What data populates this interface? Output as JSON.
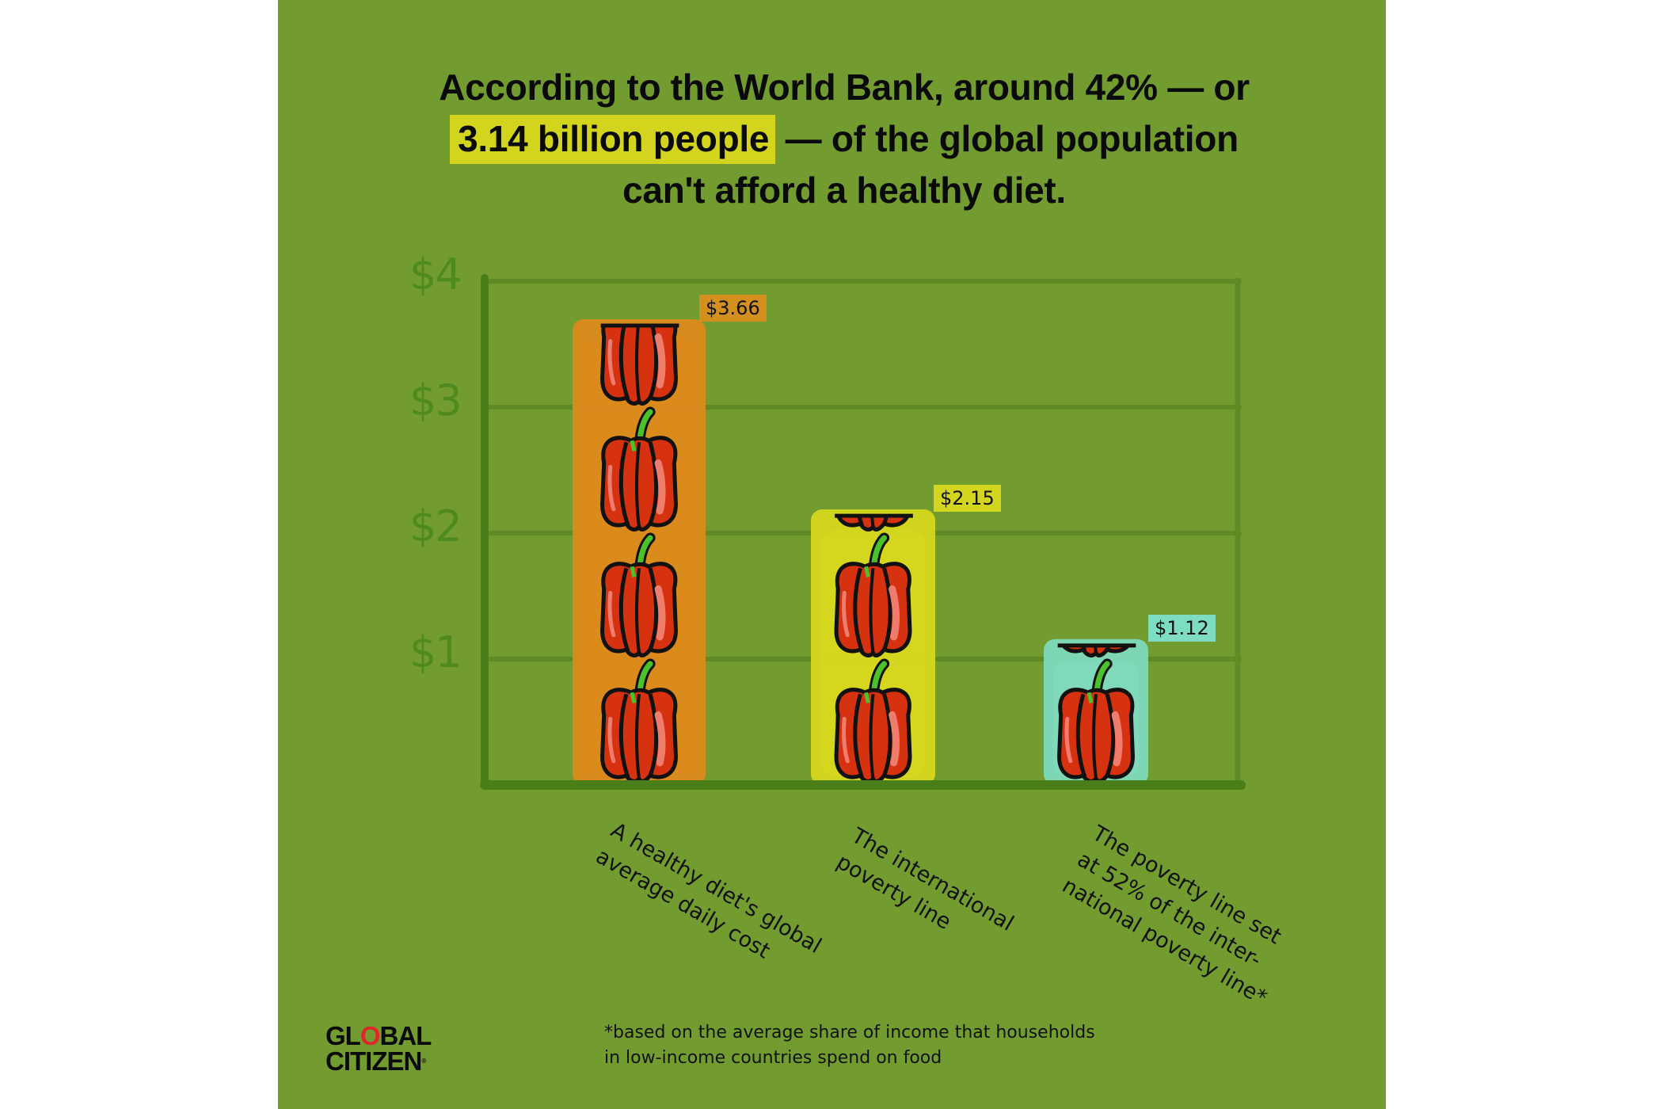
{
  "title": {
    "line1": "According to the World Bank, around 42% — or",
    "line2_highlight": "3.14 billion people",
    "line2_rest": " — of the global population",
    "line3": "can't afford a healthy diet."
  },
  "colors": {
    "panel": "#739c30",
    "highlight": "#d3d41e",
    "axis": "#4a7e18",
    "grid": "#5f8a26",
    "tick_text": "#4e8a1e"
  },
  "chart_data": {
    "type": "bar",
    "title": "According to the World Bank, around 42% — or 3.14 billion people — of the global population can't afford a healthy diet.",
    "categories": [
      "A healthy diet's global average daily cost",
      "The international poverty line",
      "The poverty line set at 52% of the international poverty line*"
    ],
    "values": [
      3.66,
      2.15,
      1.12
    ],
    "value_labels": [
      "$3.66",
      "$2.15",
      "$1.12"
    ],
    "bar_colors": [
      "#e08a1c",
      "#d8d91e",
      "#7fdcc0"
    ],
    "label_colors": [
      "#d4901e",
      "#d4d51e",
      "#7edcc0"
    ],
    "unit_icon": "bell-pepper-icon",
    "y_ticks": [
      1,
      2,
      3,
      4
    ],
    "y_tick_labels": [
      "$1",
      "$2",
      "$3",
      "$4"
    ],
    "ylim": [
      0,
      4
    ],
    "xlabel": "",
    "ylabel": "",
    "grid": true,
    "x_label_lines": [
      [
        "A healthy diet's global",
        "average daily cost"
      ],
      [
        "The international",
        "poverty line"
      ],
      [
        "The poverty line set",
        "at 52% of the inter-",
        "national poverty line*"
      ]
    ]
  },
  "footnote": {
    "line1": "*based on the average share of income that households",
    "line2": "in low-income countries spend on food"
  },
  "logo": {
    "line1_a": "GL",
    "line1_o": "O",
    "line1_b": "BAL",
    "line2": "CITIZEN",
    "mark": "®"
  }
}
